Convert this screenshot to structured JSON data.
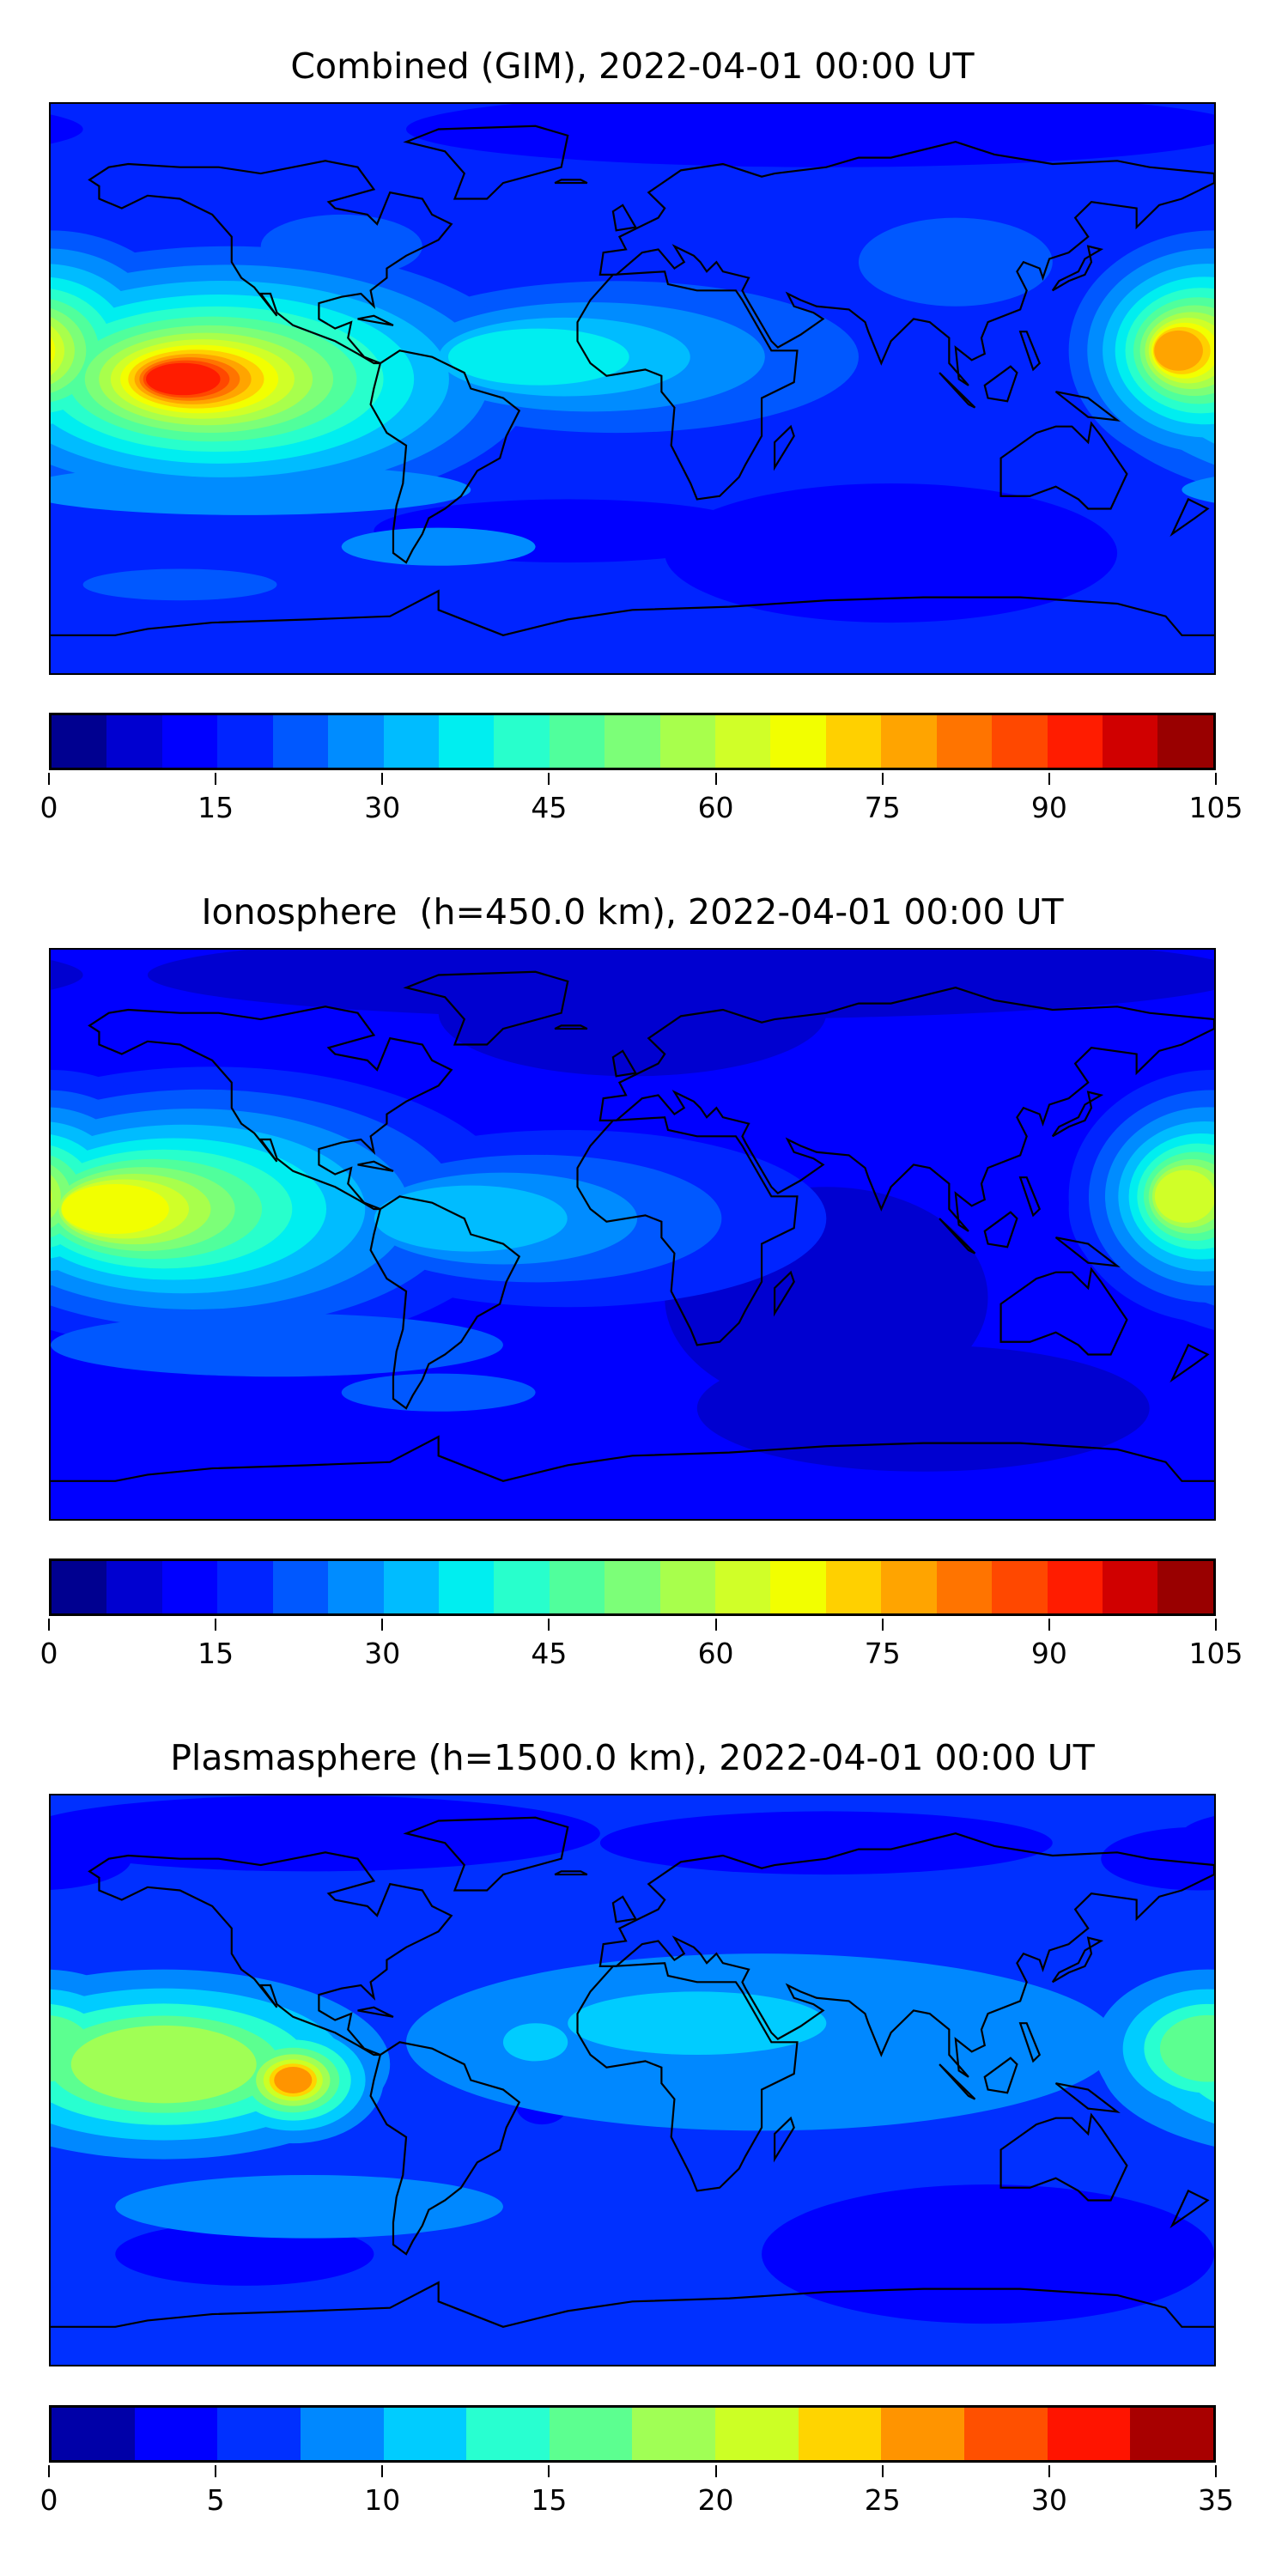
{
  "panels": [
    {
      "title": "Combined (GIM), 2022-04-01 00:00 UT",
      "colorbar": {
        "min": 0,
        "max": 105,
        "step": 5,
        "ticks": [
          "0",
          "15",
          "30",
          "45",
          "60",
          "75",
          "90",
          "105"
        ],
        "colors": [
          "#000090",
          "#0000d0",
          "#0000ff",
          "#0024ff",
          "#0058ff",
          "#008cff",
          "#00bcff",
          "#00eef0",
          "#28ffcc",
          "#50ff9c",
          "#7cff78",
          "#a8ff4c",
          "#d0ff28",
          "#f2ff00",
          "#ffd000",
          "#ffa400",
          "#ff7400",
          "#ff4800",
          "#ff1c00",
          "#d00000",
          "#990000"
        ]
      }
    },
    {
      "title": "Ionosphere  (h=450.0 km), 2022-04-01 00:00 UT",
      "colorbar": {
        "min": 0,
        "max": 105,
        "step": 5,
        "ticks": [
          "0",
          "15",
          "30",
          "45",
          "60",
          "75",
          "90",
          "105"
        ],
        "colors": [
          "#000090",
          "#0000d0",
          "#0000ff",
          "#0024ff",
          "#0058ff",
          "#008cff",
          "#00bcff",
          "#00eef0",
          "#28ffcc",
          "#50ff9c",
          "#7cff78",
          "#a8ff4c",
          "#d0ff28",
          "#f2ff00",
          "#ffd000",
          "#ffa400",
          "#ff7400",
          "#ff4800",
          "#ff1c00",
          "#d00000",
          "#990000"
        ]
      }
    },
    {
      "title": "Plasmasphere (h=1500.0 km), 2022-04-01 00:00 UT",
      "colorbar": {
        "min": 0,
        "max": 35,
        "step": 2.5,
        "ticks": [
          "0",
          "5",
          "10",
          "15",
          "20",
          "25",
          "30",
          "35"
        ],
        "colors": [
          "#0000a8",
          "#0000ff",
          "#0030ff",
          "#0088ff",
          "#00ccff",
          "#28ffd0",
          "#5cff90",
          "#a0ff55",
          "#ccff25",
          "#ffd400",
          "#ff9400",
          "#ff5000",
          "#ff1400",
          "#a80000"
        ]
      }
    }
  ]
}
